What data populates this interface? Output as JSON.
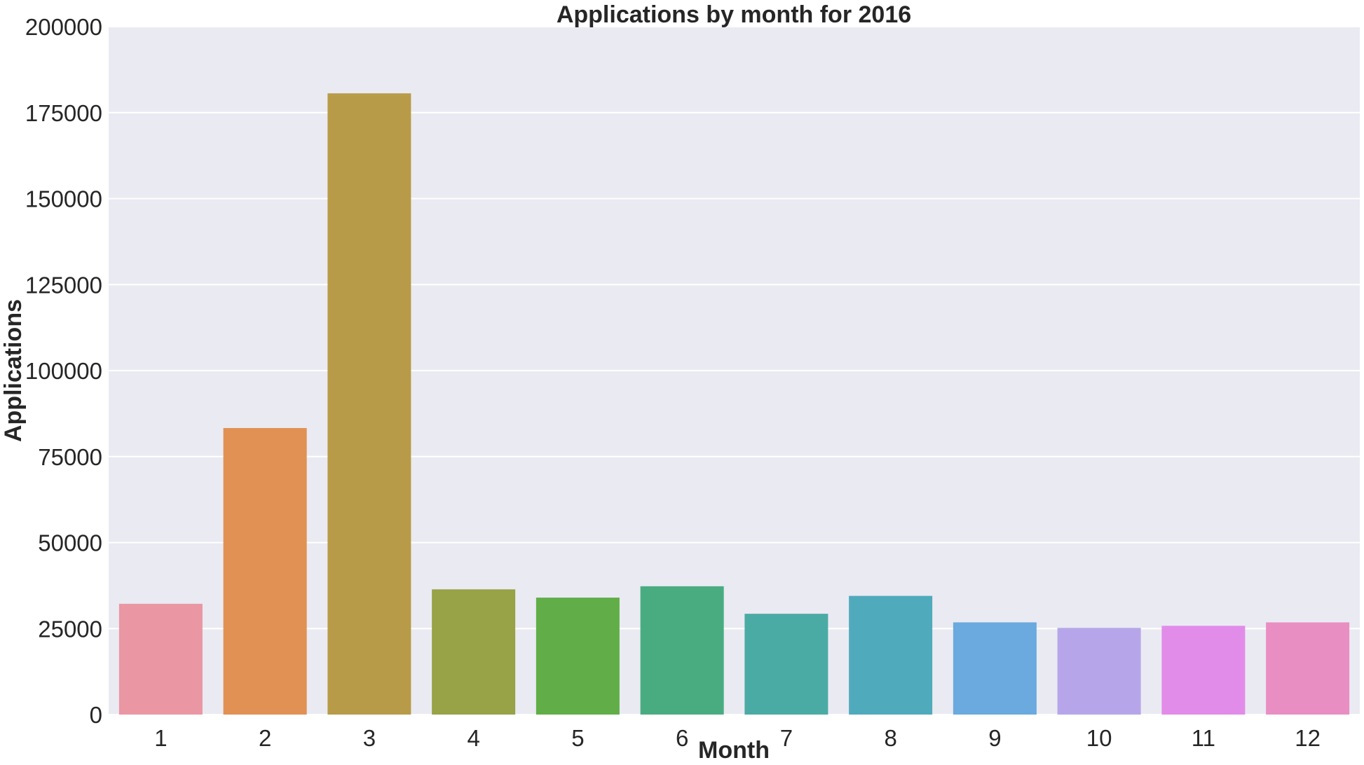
{
  "chart_data": {
    "type": "bar",
    "title": "Applications by month for 2016",
    "xlabel": "Month",
    "ylabel": "Applications",
    "categories": [
      "1",
      "2",
      "3",
      "4",
      "5",
      "6",
      "7",
      "8",
      "9",
      "10",
      "11",
      "12"
    ],
    "values": [
      32200,
      83300,
      180600,
      36400,
      34000,
      37300,
      29300,
      34500,
      26800,
      25200,
      25800,
      26800
    ],
    "ylim": [
      0,
      200000
    ],
    "yticks": [
      "0",
      "25000",
      "50000",
      "75000",
      "100000",
      "125000",
      "150000",
      "175000",
      "200000"
    ],
    "grid": true,
    "background_color": "#eaeaf2",
    "colors": [
      "#ea96a3",
      "#e19153",
      "#b89b48",
      "#98a246",
      "#61ae48",
      "#49ac81",
      "#4aaba4",
      "#4faabc",
      "#6aaade",
      "#b6a6e9",
      "#e28ce9",
      "#e98ec3"
    ]
  }
}
